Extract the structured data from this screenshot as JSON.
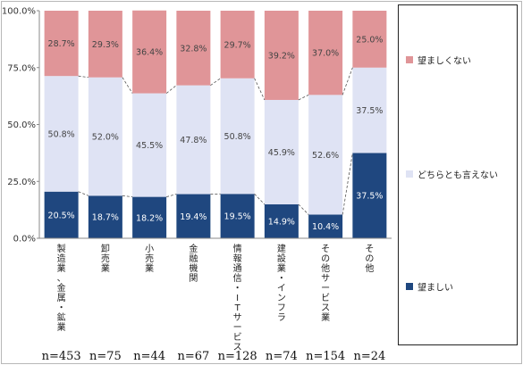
{
  "chart_data": {
    "type": "bar",
    "stacked": true,
    "percent": true,
    "categories": [
      "製造業、金属・鉱業",
      "卸売業",
      "小売業",
      "金融機関",
      "情報通信・ITサービス",
      "建設業・インフラ",
      "その他サービス業",
      "その他"
    ],
    "counts": [
      "n=453",
      "n=75",
      "n=44",
      "n=67",
      "n=128",
      "n=74",
      "n=154",
      "n=24"
    ],
    "series": [
      {
        "name": "望ましい",
        "values": [
          20.5,
          18.7,
          18.2,
          19.4,
          19.5,
          14.9,
          10.4,
          37.5
        ],
        "labels": [
          "20.5%",
          "18.7%",
          "18.2%",
          "19.4%",
          "19.5%",
          "14.9%",
          "10.4%",
          "37.5%"
        ]
      },
      {
        "name": "どちらとも言えない",
        "values": [
          50.8,
          52.0,
          45.5,
          47.8,
          50.8,
          45.9,
          52.6,
          37.5
        ],
        "labels": [
          "50.8%",
          "52.0%",
          "45.5%",
          "47.8%",
          "50.8%",
          "45.9%",
          "52.6%",
          "37.5%"
        ]
      },
      {
        "name": "望ましくない",
        "values": [
          28.7,
          29.3,
          36.4,
          32.8,
          29.7,
          39.2,
          37.0,
          25.0
        ],
        "labels": [
          "28.7%",
          "29.3%",
          "36.4%",
          "32.8%",
          "29.7%",
          "39.2%",
          "37.0%",
          "25.0%"
        ]
      }
    ],
    "ylim": [
      0,
      100
    ],
    "yticks": [
      "0.0%",
      "25.0%",
      "50.0%",
      "75.0%",
      "100.0%"
    ],
    "grid": false,
    "legend_position": "right",
    "legend_order": [
      "望ましくない",
      "どちらとも言えない",
      "望ましい"
    ],
    "colors": {
      "望ましい": "#1f477f",
      "どちらとも言えない": "#dfe3f4",
      "望ましくない": "#e09598"
    }
  }
}
